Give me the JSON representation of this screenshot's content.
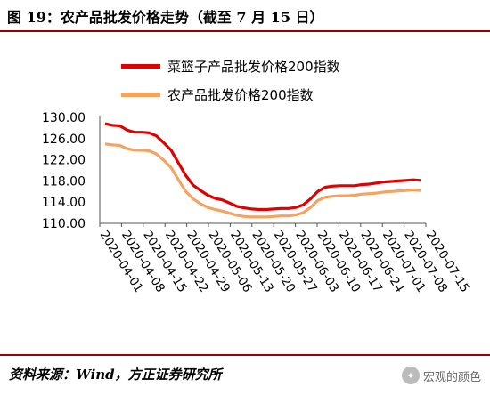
{
  "header": {
    "title": "图 19：农产品批发价格走势（截至 7 月 15 日）"
  },
  "footer": {
    "source": "资料来源：Wind，方正证券研究所",
    "watermark": "宏观的颜色"
  },
  "colors": {
    "accent": "#9e0000",
    "series1": "#e00000",
    "series2": "#f4a460"
  },
  "chart_data": {
    "type": "line",
    "ylim": [
      110,
      130
    ],
    "yticks": [
      "130.00",
      "126.00",
      "122.00",
      "118.00",
      "114.00",
      "110.00"
    ],
    "ytick_values": [
      130,
      126,
      122,
      118,
      114,
      110
    ],
    "xtick_labels": [
      "2020-04-01",
      "2020-04-08",
      "2020-04-15",
      "2020-04-22",
      "2020-04-29",
      "2020-05-06",
      "2020-05-13",
      "2020-05-20",
      "2020-05-27",
      "2020-06-03",
      "2020-06-10",
      "2020-06-17",
      "2020-06-24",
      "2020-07-01",
      "2020-07-08",
      "2020-07-15"
    ],
    "series": [
      {
        "name": "菜篮子产品批发价格200指数",
        "color": "#e00000",
        "values": [
          128.8,
          128.5,
          128.4,
          127.6,
          127.2,
          127.2,
          127.1,
          126.5,
          125.2,
          123.8,
          121.4,
          119.0,
          117.2,
          116.2,
          115.3,
          114.7,
          114.4,
          113.8,
          113.2,
          112.9,
          112.7,
          112.6,
          112.6,
          112.7,
          112.8,
          112.8,
          113.0,
          113.5,
          114.6,
          116.0,
          116.8,
          117.0,
          117.1,
          117.1,
          117.1,
          117.3,
          117.4,
          117.6,
          117.8,
          117.9,
          118.0,
          118.1,
          118.2,
          118.1
        ]
      },
      {
        "name": "农产品批发价格200指数",
        "color": "#f4a460",
        "values": [
          125.0,
          124.8,
          124.7,
          124.1,
          123.8,
          123.8,
          123.7,
          123.1,
          121.9,
          120.5,
          118.2,
          116.0,
          114.6,
          113.7,
          113.0,
          112.6,
          112.3,
          111.9,
          111.5,
          111.3,
          111.2,
          111.2,
          111.2,
          111.3,
          111.4,
          111.4,
          111.6,
          112.0,
          113.0,
          114.3,
          114.9,
          115.1,
          115.2,
          115.2,
          115.3,
          115.5,
          115.6,
          115.7,
          115.9,
          116.0,
          116.1,
          116.2,
          116.3,
          116.2
        ]
      }
    ]
  }
}
